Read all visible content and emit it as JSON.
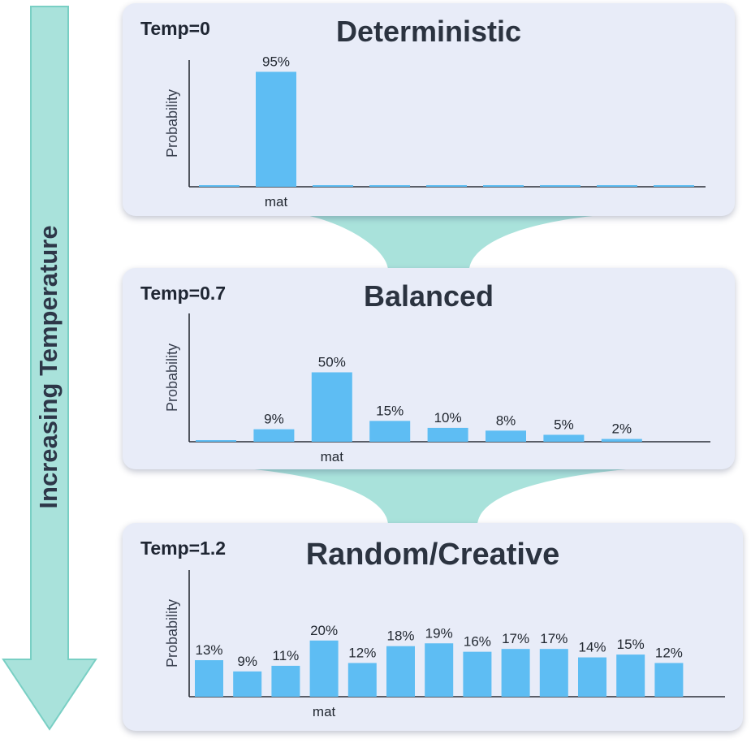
{
  "side_label": "Increasing Temperature",
  "colors": {
    "bar": "#5ebdf3",
    "arrow": "#a9e2db",
    "arrow_edge": "#79cfc4",
    "panel_bg": "#e8ecf8",
    "axis": "#2a2f38",
    "text": "#2b3340"
  },
  "panels": [
    {
      "temp_label": "Temp=0",
      "title": "Deterministic"
    },
    {
      "temp_label": "Temp=0.7",
      "title": "Balanced"
    },
    {
      "temp_label": "Temp=1.2",
      "title": "Random/Creative"
    }
  ],
  "chart_data": [
    {
      "type": "bar",
      "title": "Deterministic",
      "ylabel": "Probability",
      "categories": [
        "",
        "mat",
        "",
        "",
        "",
        "",
        "",
        "",
        ""
      ],
      "values": [
        1,
        95,
        0,
        1,
        1,
        1,
        1,
        1,
        1
      ],
      "labels": [
        "",
        "95%",
        "",
        "",
        "",
        "",
        "",
        "",
        ""
      ],
      "ylim": [
        0,
        100
      ]
    },
    {
      "type": "bar",
      "title": "Balanced",
      "ylabel": "Probability",
      "categories": [
        "",
        "",
        "mat",
        "",
        "",
        "",
        "",
        ""
      ],
      "values": [
        1,
        9,
        50,
        15,
        10,
        8,
        5,
        2
      ],
      "labels": [
        "",
        "9%",
        "50%",
        "15%",
        "10%",
        "8%",
        "5%",
        "2%"
      ],
      "ylim": [
        0,
        100
      ]
    },
    {
      "type": "bar",
      "title": "Random/Creative",
      "ylabel": "Probability",
      "categories": [
        "",
        "",
        "",
        "mat",
        "",
        "",
        "",
        "",
        "",
        "",
        "",
        "",
        ""
      ],
      "values": [
        13,
        9,
        11,
        20,
        12,
        18,
        19,
        16,
        17,
        17,
        14,
        15,
        12
      ],
      "labels": [
        "13%",
        "9%",
        "11%",
        "20%",
        "12%",
        "18%",
        "19%",
        "16%",
        "17%",
        "17%",
        "14%",
        "15%",
        "12%"
      ],
      "ylim": [
        0,
        30
      ]
    }
  ]
}
